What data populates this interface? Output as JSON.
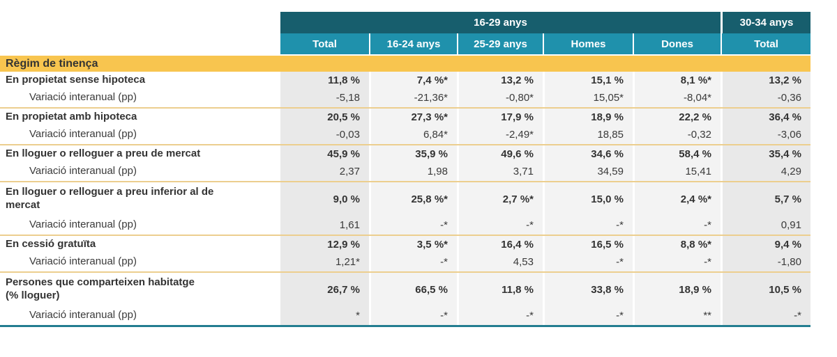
{
  "colors": {
    "header_dark_teal": "#175e6d",
    "header_light_teal": "#1f91ac",
    "section_band_yellow": "#f8c54f",
    "row_separator_gold": "#ecce8e",
    "bottom_border_teal": "#237d90",
    "cell_gray_total": "#e9e9e9",
    "cell_gray_mid": "#f3f3f3"
  },
  "table": {
    "header": {
      "group_main": "16-29 anys",
      "group_right": "30-34 anys",
      "columns": [
        "Total",
        "16-24 anys",
        "25-29 anys",
        "Homes",
        "Dones",
        "Total"
      ]
    },
    "section": "Règim de tinença",
    "variation_label": "Variació interanual (pp)",
    "rows": [
      {
        "label": "En propietat sense hipoteca",
        "values": [
          "11,8 %",
          "7,4 %*",
          "13,2 %",
          "15,1 %",
          "8,1 %*",
          "13,2 %"
        ],
        "variation": [
          "-5,18",
          "-21,36*",
          "-0,80*",
          "15,05*",
          "-8,04*",
          "-0,36"
        ]
      },
      {
        "label": "En propietat amb hipoteca",
        "values": [
          "20,5 %",
          "27,3 %*",
          "17,9 %",
          "18,9 %",
          "22,2 %",
          "36,4 %"
        ],
        "variation": [
          "-0,03",
          "6,84*",
          "-2,49*",
          "18,85",
          "-0,32",
          "-3,06"
        ]
      },
      {
        "label": "En lloguer o relloguer a preu de mercat",
        "values": [
          "45,9 %",
          "35,9 %",
          "49,6 %",
          "34,6 %",
          "58,4 %",
          "35,4 %"
        ],
        "variation": [
          "2,37",
          "1,98",
          "3,71",
          "34,59",
          "15,41",
          "4,29"
        ]
      },
      {
        "label": "En lloguer o relloguer a preu inferior al de\nmercat",
        "values": [
          "9,0 %",
          "25,8 %*",
          "2,7 %*",
          "15,0 %",
          "2,4 %*",
          "5,7 %"
        ],
        "variation": [
          "1,61",
          "-*",
          "-*",
          "-*",
          "-*",
          "0,91"
        ]
      },
      {
        "label": "En cessió gratuïta",
        "values": [
          "12,9 %",
          "3,5 %*",
          "16,4 %",
          "16,5 %",
          "8,8 %*",
          "9,4 %"
        ],
        "variation": [
          "1,21*",
          "-*",
          "4,53",
          "-*",
          "-*",
          "-1,80"
        ]
      },
      {
        "label": "Persones que comparteixen habitatge\n(% lloguer)",
        "values": [
          "26,7 %",
          "66,5 %",
          "11,8 %",
          "33,8 %",
          "18,9 %",
          "10,5 %"
        ],
        "variation": [
          "*",
          "-*",
          "-*",
          "-*",
          "**",
          "-*"
        ]
      }
    ]
  }
}
